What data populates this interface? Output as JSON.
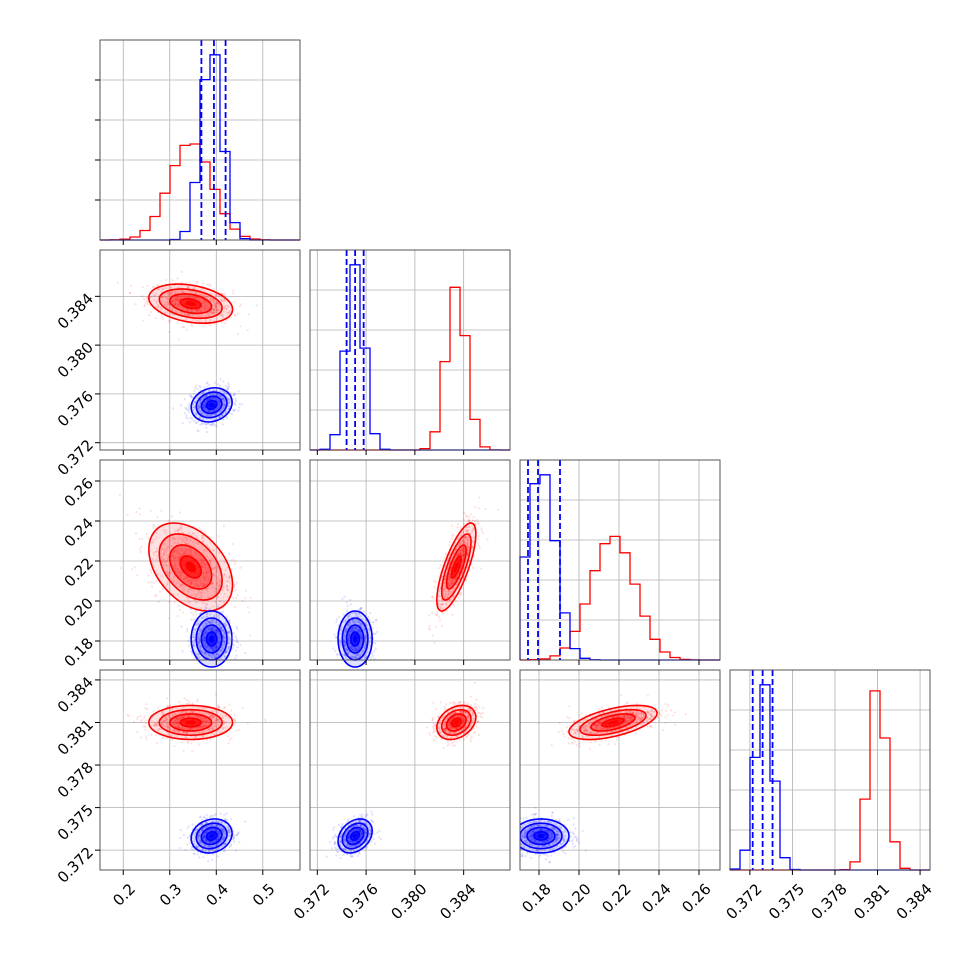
{
  "chart_data": {
    "type": "scatter",
    "title": "",
    "subtitle": "",
    "layout": "corner-plot",
    "grid": true,
    "legend": "none",
    "colors": {
      "series_a": "#ff0000",
      "series_b": "#0000ff"
    },
    "variables": [
      {
        "ticks": [
          "0.2",
          "0.3",
          "0.4",
          "0.5"
        ],
        "tick_values": [
          0.2,
          0.3,
          0.4,
          0.5
        ],
        "range": [
          0.15,
          0.58
        ]
      },
      {
        "ticks": [
          "0.372",
          "0.376",
          "0.380",
          "0.384"
        ],
        "tick_values": [
          0.372,
          0.376,
          0.38,
          0.384
        ],
        "range": [
          0.3714,
          0.3878
        ]
      },
      {
        "ticks": [
          "0.18",
          "0.20",
          "0.22",
          "0.24",
          "0.26"
        ],
        "tick_values": [
          0.18,
          0.2,
          0.22,
          0.24,
          0.26
        ],
        "range": [
          0.1705,
          0.2705
        ]
      },
      {
        "ticks": [
          "0.372",
          "0.375",
          "0.378",
          "0.381",
          "0.384"
        ],
        "tick_values": [
          0.372,
          0.375,
          0.378,
          0.381,
          0.384
        ],
        "range": [
          0.3706,
          0.3847
        ]
      }
    ],
    "series": [
      {
        "color": "#ff0000",
        "mean": [
          0.345,
          0.3834,
          0.217,
          0.381
        ],
        "sd": [
          0.045,
          0.0008,
          0.011,
          0.0006
        ],
        "corr": [
          [
            1,
            -0.3,
            -0.4,
            0
          ],
          [
            -0.3,
            1,
            0.75,
            0.3
          ],
          [
            -0.4,
            0.75,
            1,
            0.55
          ],
          [
            0,
            0.3,
            0.55,
            1
          ]
        ]
      },
      {
        "color": "#0000ff",
        "mean": [
          0.39,
          0.3751,
          0.181,
          0.373
        ],
        "sd": [
          0.022,
          0.0007,
          0.007,
          0.0006
        ],
        "corr": [
          [
            1,
            0.15,
            0,
            0.15
          ],
          [
            0.15,
            1,
            0,
            0.3
          ],
          [
            0,
            0,
            1,
            0
          ],
          [
            0.15,
            0.3,
            0,
            1
          ]
        ]
      }
    ],
    "quantile_lines": [
      {
        "variable": 0,
        "color": "#0000ff",
        "values": [
          0.368,
          0.395,
          0.42
        ]
      },
      {
        "variable": 1,
        "color": "#0000ff",
        "values": [
          0.3744,
          0.3751,
          0.3758
        ]
      },
      {
        "variable": 2,
        "color": "#0000ff",
        "values": [
          0.1745,
          0.1795,
          0.1905
        ]
      },
      {
        "variable": 3,
        "color": "#0000ff",
        "values": [
          0.3722,
          0.3729,
          0.3736
        ]
      }
    ]
  }
}
